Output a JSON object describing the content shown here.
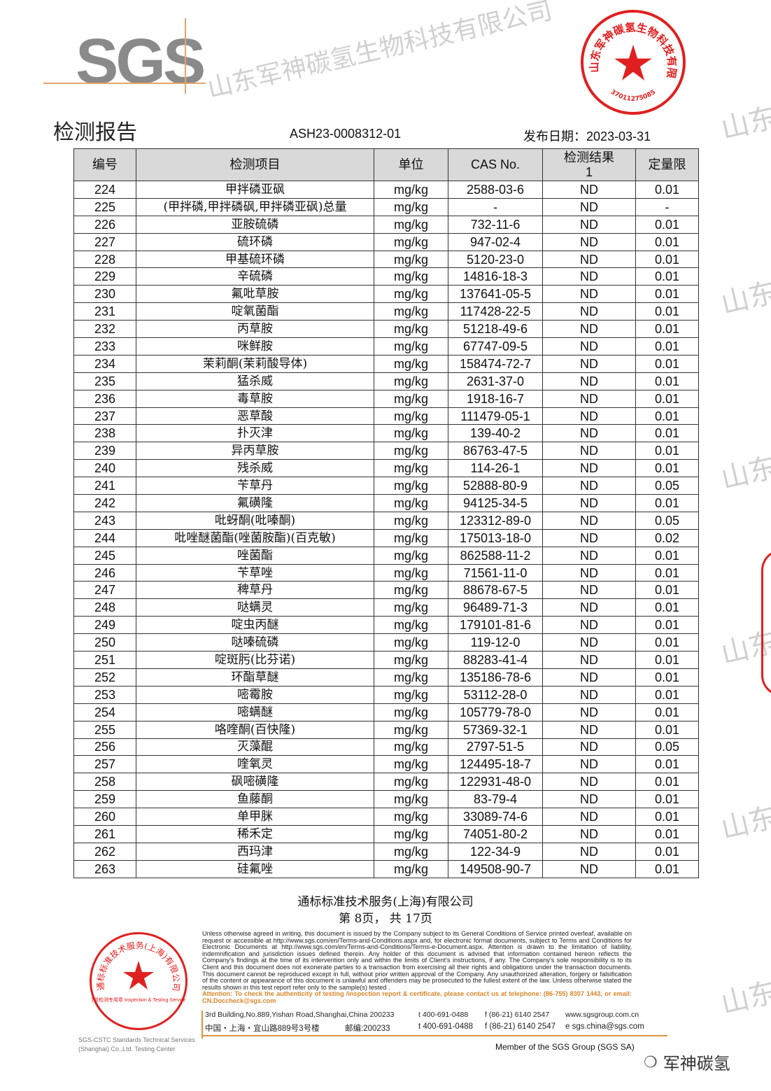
{
  "header": {
    "logo": "SGS",
    "title": "检测报告",
    "report_no": "ASH23-0008312-01",
    "issue_date": "发布日期：2023-03-31"
  },
  "table": {
    "columns": [
      "编号",
      "检测项目",
      "单位",
      "CAS No.",
      "检测结果\n1",
      "定量限"
    ],
    "rows": [
      [
        "224",
        "甲拌磷亚砜",
        "mg/kg",
        "2588-03-6",
        "ND",
        "0.01"
      ],
      [
        "225",
        "(甲拌磷,甲拌磷砜,甲拌磷亚砜)总量",
        "mg/kg",
        "-",
        "ND",
        "-"
      ],
      [
        "226",
        "亚胺硫磷",
        "mg/kg",
        "732-11-6",
        "ND",
        "0.01"
      ],
      [
        "227",
        "硫环磷",
        "mg/kg",
        "947-02-4",
        "ND",
        "0.01"
      ],
      [
        "228",
        "甲基硫环磷",
        "mg/kg",
        "5120-23-0",
        "ND",
        "0.01"
      ],
      [
        "229",
        "辛硫磷",
        "mg/kg",
        "14816-18-3",
        "ND",
        "0.01"
      ],
      [
        "230",
        "氟吡草胺",
        "mg/kg",
        "137641-05-5",
        "ND",
        "0.01"
      ],
      [
        "231",
        "啶氧菌酯",
        "mg/kg",
        "117428-22-5",
        "ND",
        "0.01"
      ],
      [
        "232",
        "丙草胺",
        "mg/kg",
        "51218-49-6",
        "ND",
        "0.01"
      ],
      [
        "233",
        "咪鲜胺",
        "mg/kg",
        "67747-09-5",
        "ND",
        "0.01"
      ],
      [
        "234",
        "茉莉酮(茉莉酸导体)",
        "mg/kg",
        "158474-72-7",
        "ND",
        "0.01"
      ],
      [
        "235",
        "猛杀威",
        "mg/kg",
        "2631-37-0",
        "ND",
        "0.01"
      ],
      [
        "236",
        "毒草胺",
        "mg/kg",
        "1918-16-7",
        "ND",
        "0.01"
      ],
      [
        "237",
        "恶草酸",
        "mg/kg",
        "111479-05-1",
        "ND",
        "0.01"
      ],
      [
        "238",
        "扑灭津",
        "mg/kg",
        "139-40-2",
        "ND",
        "0.01"
      ],
      [
        "239",
        "异丙草胺",
        "mg/kg",
        "86763-47-5",
        "ND",
        "0.01"
      ],
      [
        "240",
        "残杀威",
        "mg/kg",
        "114-26-1",
        "ND",
        "0.01"
      ],
      [
        "241",
        "苄草丹",
        "mg/kg",
        "52888-80-9",
        "ND",
        "0.05"
      ],
      [
        "242",
        "氟磺隆",
        "mg/kg",
        "94125-34-5",
        "ND",
        "0.01"
      ],
      [
        "243",
        "吡蚜酮(吡嗪酮)",
        "mg/kg",
        "123312-89-0",
        "ND",
        "0.05"
      ],
      [
        "244",
        "吡唑醚菌酯(唑菌胺酯)(百克敏)",
        "mg/kg",
        "175013-18-0",
        "ND",
        "0.02"
      ],
      [
        "245",
        "唑菌酯",
        "mg/kg",
        "862588-11-2",
        "ND",
        "0.01"
      ],
      [
        "246",
        "苄草唑",
        "mg/kg",
        "71561-11-0",
        "ND",
        "0.01"
      ],
      [
        "247",
        "稗草丹",
        "mg/kg",
        "88678-67-5",
        "ND",
        "0.01"
      ],
      [
        "248",
        "哒螨灵",
        "mg/kg",
        "96489-71-3",
        "ND",
        "0.01"
      ],
      [
        "249",
        "啶虫丙醚",
        "mg/kg",
        "179101-81-6",
        "ND",
        "0.01"
      ],
      [
        "250",
        "哒嗪硫磷",
        "mg/kg",
        "119-12-0",
        "ND",
        "0.01"
      ],
      [
        "251",
        "啶斑肟(比芬诺)",
        "mg/kg",
        "88283-41-4",
        "ND",
        "0.01"
      ],
      [
        "252",
        "环酯草醚",
        "mg/kg",
        "135186-78-6",
        "ND",
        "0.01"
      ],
      [
        "253",
        "嘧霉胺",
        "mg/kg",
        "53112-28-0",
        "ND",
        "0.01"
      ],
      [
        "254",
        "嘧螨醚",
        "mg/kg",
        "105779-78-0",
        "ND",
        "0.01"
      ],
      [
        "255",
        "咯喹酮(百快隆)",
        "mg/kg",
        "57369-32-1",
        "ND",
        "0.01"
      ],
      [
        "256",
        "灭藻醌",
        "mg/kg",
        "2797-51-5",
        "ND",
        "0.05"
      ],
      [
        "257",
        "喹氧灵",
        "mg/kg",
        "124495-18-7",
        "ND",
        "0.01"
      ],
      [
        "258",
        "砜嘧磺隆",
        "mg/kg",
        "122931-48-0",
        "ND",
        "0.01"
      ],
      [
        "259",
        "鱼藤酮",
        "mg/kg",
        "83-79-4",
        "ND",
        "0.01"
      ],
      [
        "260",
        "单甲脒",
        "mg/kg",
        "33089-74-6",
        "ND",
        "0.01"
      ],
      [
        "261",
        "稀禾定",
        "mg/kg",
        "74051-80-2",
        "ND",
        "0.01"
      ],
      [
        "262",
        "西玛津",
        "mg/kg",
        "122-34-9",
        "ND",
        "0.01"
      ],
      [
        "263",
        "硅氟唑",
        "mg/kg",
        "149508-90-7",
        "ND",
        "0.01"
      ]
    ]
  },
  "footer": {
    "company": "通标标准技术服务(上海)有限公司",
    "page": "第  8页，  共  17页",
    "disclaimer": "Unless otherwise agreed in writing, this document is issued by the Company subject to its General Conditions of Service printed overleaf, available on request or accessible at http://www.sgs.com/en/Terms-and-Conditions.aspx and, for electronic format documents, subject to Terms and Conditions for Electronic Documents at http://www.sgs.com/en/Terms-and-Conditions/Terms-e-Document.aspx. Attention is drawn to the limitation of liability, indemnification and jurisdiction issues defined therein. Any holder of this document is advised that information contained hereon reflects the Company's findings at the time of its intervention only and within the limits of Client's instructions, if any. The Company's sole responsibility is to its Client and this document does not exonerate parties to a transaction from exercising all their rights and obligations under the transaction documents. This document cannot be reproduced except in full, without prior written approval of the Company. Any unauthorized alteration, forgery or falsification of the content or appearance of this document is unlawful and offenders may be prosecuted to the fullest extent of the law. Unless otherwise stated the results shown in this test report refer only to the sample(s) tested .",
    "attention": "Attention: To check the authenticity of testing /inspection report & certificate, please contact us at telephone: (86-755) 8307 1443, or email: CN.Doccheck@sgs.com",
    "address_en": [
      "3rd Building,No.889,Yishan Road,Shanghai,China  200233",
      "t 400-691-0488",
      "f (86-21) 6140 2547",
      "www.sgsgroup.com.cn"
    ],
    "address_cn": [
      "中国・上海・宜山路889号3号楼",
      "邮编:200233",
      "t 400-691-0488",
      "f (86-21) 6140 2547",
      "e  sgs.china@sgs.com"
    ],
    "member": "Member of the SGS Group (SGS SA)"
  },
  "stamps": {
    "top_text": "山东军神碳氢生物科技有限公司",
    "top_number": "3701127508581",
    "bottom_text": "通标标准技术服务(上海)有限公司",
    "bottom_inner": "检验检测专用章 Inspection & Testing Services",
    "bottom_side": "SGS-CSTC Standards Technical Services (Shanghai) Co.,Ltd. Testing Center"
  },
  "watermark": {
    "text": "山东军神碳氢生物科技有限公司",
    "edge": "山东军"
  },
  "wechat": {
    "label": "军神碳氢"
  },
  "colors": {
    "stamp": "#e02020",
    "accent": "#e0923d",
    "header_bg": "#d9d9d9"
  }
}
